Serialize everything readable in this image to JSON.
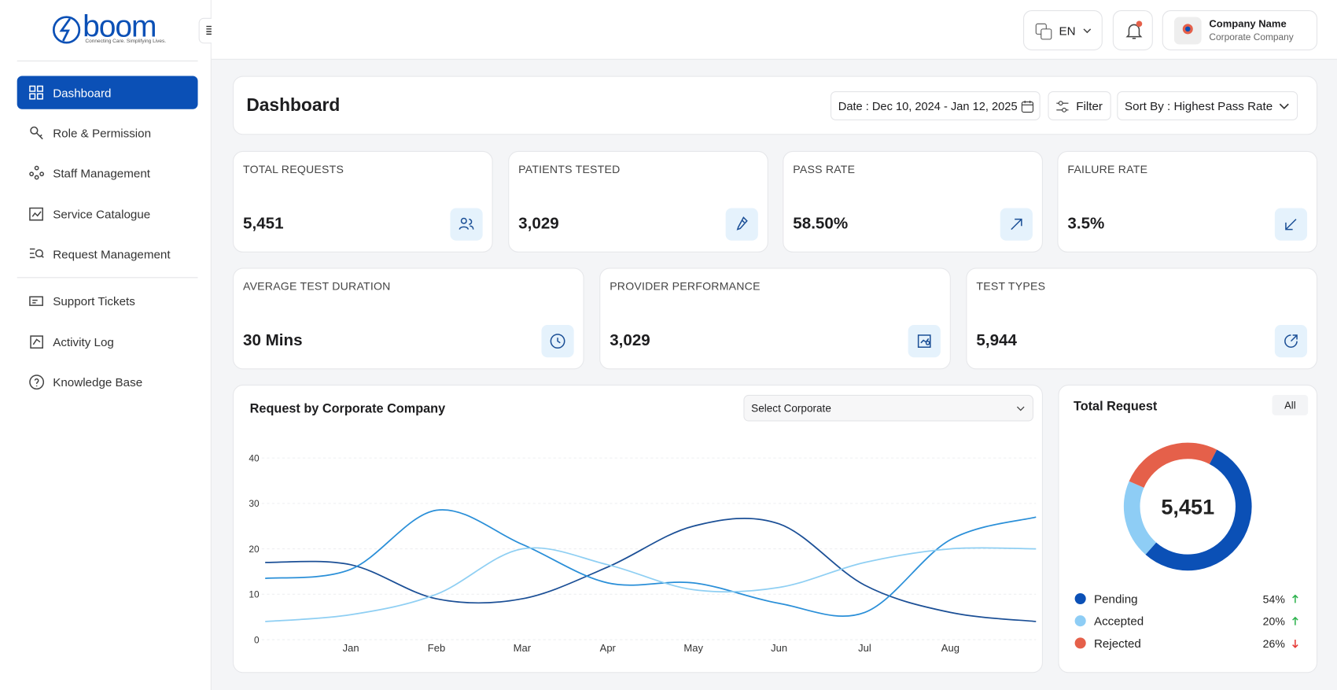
{
  "sidebar": {
    "logo": "boom",
    "tagline": "Connecting Care. Simplifying Lives.",
    "menu": [
      "Dashboard",
      "Role & Permission",
      "Staff Management",
      "Service Catalogue",
      "Request Management",
      "Support Tickets",
      "Activity Log",
      "Knowledge Base"
    ],
    "active": 0
  },
  "header": {
    "language": "EN",
    "company_name": "Company Name",
    "company_type": "Corporate Company"
  },
  "toolbar": {
    "title": "Dashboard",
    "date": "Date : Dec 10, 2024 - Jan 12, 2025",
    "filter": "Filter",
    "sort": "Sort By : Highest Pass Rate"
  },
  "stats": [
    {
      "label": "TOTAL REQUESTS",
      "value": "5,451"
    },
    {
      "label": "PATIENTS TESTED",
      "value": "3,029"
    },
    {
      "label": "PASS RATE",
      "value": "58.50%"
    },
    {
      "label": "FAILURE RATE",
      "value": "3.5%"
    },
    {
      "label": "AVERAGE TEST DURATION",
      "value": "30 Mins"
    },
    {
      "label": "PROVIDER PERFORMANCE",
      "value": "3,029"
    },
    {
      "label": "TEST TYPES",
      "value": "5,944"
    }
  ],
  "chart_data": [
    {
      "type": "line",
      "title": "Request by Corporate Company",
      "select": "Select Corporate",
      "categories": [
        null,
        "Jan",
        "Feb",
        "Mar",
        "Apr",
        "May",
        "Jun",
        "Jul",
        "Aug",
        null
      ],
      "ylim": [
        0,
        40
      ],
      "yticks": [
        0,
        10,
        20,
        30,
        40
      ],
      "grid": true,
      "series": [
        {
          "color": "#1b4f96",
          "values": [
            17,
            16.5,
            9,
            9,
            16,
            25,
            25.5,
            12,
            6,
            4
          ]
        },
        {
          "color": "#2a8fd8",
          "values": [
            13.5,
            15.5,
            28.5,
            21,
            12.5,
            12.5,
            8,
            6,
            22,
            27
          ]
        },
        {
          "color": "#8fcff3",
          "values": [
            4,
            5.5,
            10,
            20,
            16.5,
            11,
            11.5,
            17,
            20,
            20
          ]
        }
      ]
    },
    {
      "type": "donut",
      "title": "Total Request",
      "filter": "All",
      "center_label": "5,451",
      "categories": [
        "Pending",
        "Accepted",
        "Rejected"
      ],
      "values": [
        54,
        20,
        26
      ],
      "value_labels": [
        "54%",
        "20%",
        "26%"
      ],
      "trends": [
        "up",
        "up",
        "down"
      ],
      "colors": [
        "#0b50b6",
        "#8ecdf5",
        "#e5604a"
      ]
    }
  ]
}
